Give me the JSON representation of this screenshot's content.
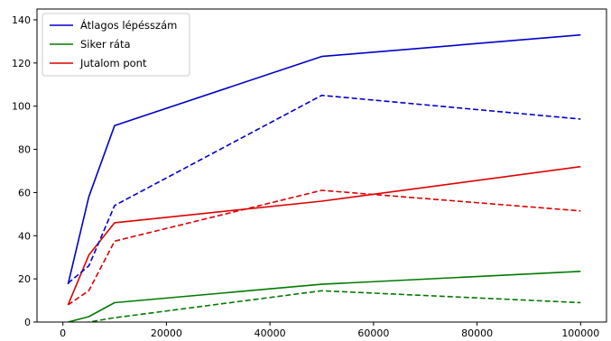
{
  "chart_data": {
    "type": "line",
    "title": "",
    "xlabel": "",
    "ylabel": "",
    "xlim": [
      -5000,
      105000
    ],
    "ylim": [
      0,
      145
    ],
    "grid": false,
    "legend_placement": "top-left",
    "x_ticks": [
      0,
      20000,
      40000,
      60000,
      80000,
      100000
    ],
    "x_tick_labels": [
      "0",
      "20000",
      "40000",
      "60000",
      "80000",
      "100000"
    ],
    "y_ticks": [
      0,
      20,
      40,
      60,
      80,
      100,
      120,
      140
    ],
    "y_tick_labels": [
      "0",
      "20",
      "40",
      "60",
      "80",
      "100",
      "120",
      "140"
    ],
    "x": [
      1000,
      5000,
      10000,
      50000,
      100000
    ],
    "series": [
      {
        "name": "Átlagos lépésszám",
        "color": "#0000cc",
        "style": "solid",
        "values": [
          17.5,
          58,
          91,
          123,
          133
        ]
      },
      {
        "name": "Siker ráta",
        "color": "#007a00",
        "style": "solid",
        "values": [
          0,
          2.5,
          9,
          17.5,
          23.5
        ]
      },
      {
        "name": "Jutalom pont",
        "color": "#dd0000",
        "style": "solid",
        "values": [
          8,
          31,
          46,
          56,
          72
        ]
      },
      {
        "name": "",
        "color": "#0000cc",
        "style": "dashed",
        "values": [
          18,
          26,
          54,
          105,
          94
        ]
      },
      {
        "name": "",
        "color": "#007a00",
        "style": "dashed",
        "values": [
          -1,
          0,
          2,
          14.5,
          9
        ]
      },
      {
        "name": "",
        "color": "#dd0000",
        "style": "dashed",
        "values": [
          8,
          14.5,
          37.5,
          61,
          51.5
        ]
      }
    ]
  }
}
